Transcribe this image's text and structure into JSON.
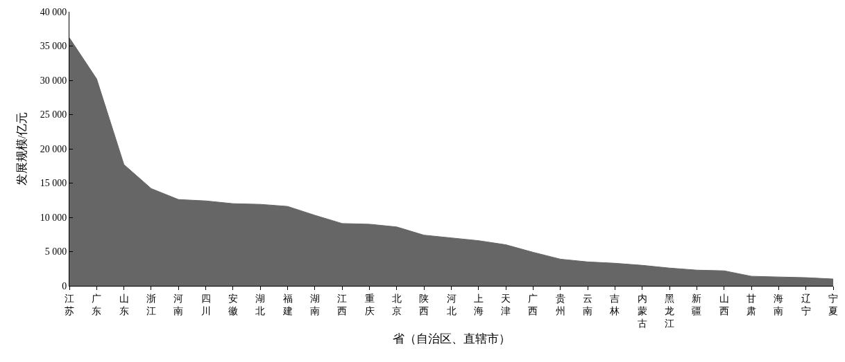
{
  "chart_data": {
    "type": "area",
    "xlabel": "省（自治区、直辖市）",
    "ylabel": "发展规模/亿元",
    "categories": [
      "江苏",
      "广东",
      "山东",
      "浙江",
      "河南",
      "四川",
      "安徽",
      "湖北",
      "福建",
      "湖南",
      "江西",
      "重庆",
      "北京",
      "陕西",
      "河北",
      "上海",
      "天津",
      "广西",
      "贵州",
      "云南",
      "吉林",
      "内蒙古",
      "黑龙江",
      "新疆",
      "山西",
      "甘肃",
      "海南",
      "辽宁",
      "宁夏"
    ],
    "values": [
      36200,
      30200,
      17700,
      14200,
      12600,
      12400,
      12000,
      11900,
      11600,
      10300,
      9100,
      9000,
      8600,
      7400,
      7000,
      6600,
      6000,
      4900,
      3900,
      3500,
      3300,
      3000,
      2600,
      2300,
      2200,
      1400,
      1300,
      1200,
      1000
    ],
    "color": "#666666",
    "ylim": [
      0,
      40000
    ],
    "yticks": [
      0,
      {
        "value": 5000,
        "label": "5 000"
      },
      {
        "value": 10000,
        "label": "10 000"
      },
      {
        "value": 15000,
        "label": "15 000"
      },
      {
        "value": 20000,
        "label": "20 000"
      },
      {
        "value": 25000,
        "label": "25 000"
      },
      {
        "value": 30000,
        "label": "30 000"
      },
      {
        "value": 35000,
        "label": "35 000"
      },
      {
        "value": 40000,
        "label": "40 000"
      }
    ],
    "line_style": "solid"
  }
}
